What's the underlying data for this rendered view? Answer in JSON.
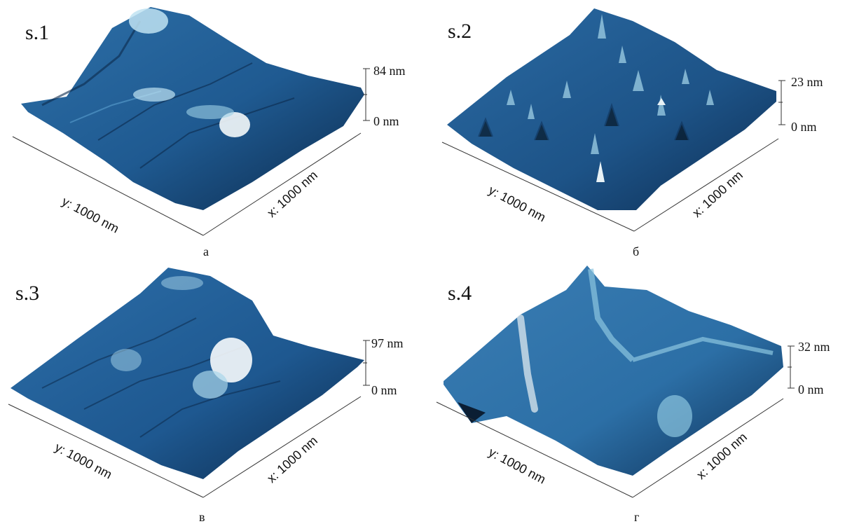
{
  "panels": [
    {
      "sample": "s.1",
      "z_max": "84 nm",
      "z_min": "0 nm",
      "y_axis": "y: 1000 nm",
      "x_axis": "x: 1000 nm",
      "letter": "а",
      "palette": {
        "dark": "#0c2a4c",
        "mid": "#2d6fa7",
        "light": "#bfe3f2",
        "peak": "#f4f8fa"
      }
    },
    {
      "sample": "s.2",
      "z_max": "23 nm",
      "z_min": "0 nm",
      "y_axis": "y: 1000 nm",
      "x_axis": "x: 1000 nm",
      "letter": "б",
      "palette": {
        "dark": "#0d2d52",
        "mid": "#2a6aa3",
        "light": "#9fd0e6",
        "peak": "#e8f2f6"
      }
    },
    {
      "sample": "s.3",
      "z_max": "97 nm",
      "z_min": "0 nm",
      "y_axis": "y: 1000 nm",
      "x_axis": "x: 1000 nm",
      "letter": "в",
      "palette": {
        "dark": "#0c2a4c",
        "mid": "#2c6ea8",
        "light": "#a9d6ea",
        "peak": "#f6fafc"
      }
    },
    {
      "sample": "s.4",
      "z_max": "32 nm",
      "z_min": "0 nm",
      "y_axis": "y: 1000 nm",
      "x_axis": "x: 1000 nm",
      "letter": "г",
      "palette": {
        "dark": "#0d2f55",
        "mid": "#3a7db3",
        "light": "#8cc6e0",
        "peak": "#e9f1f4"
      }
    }
  ]
}
